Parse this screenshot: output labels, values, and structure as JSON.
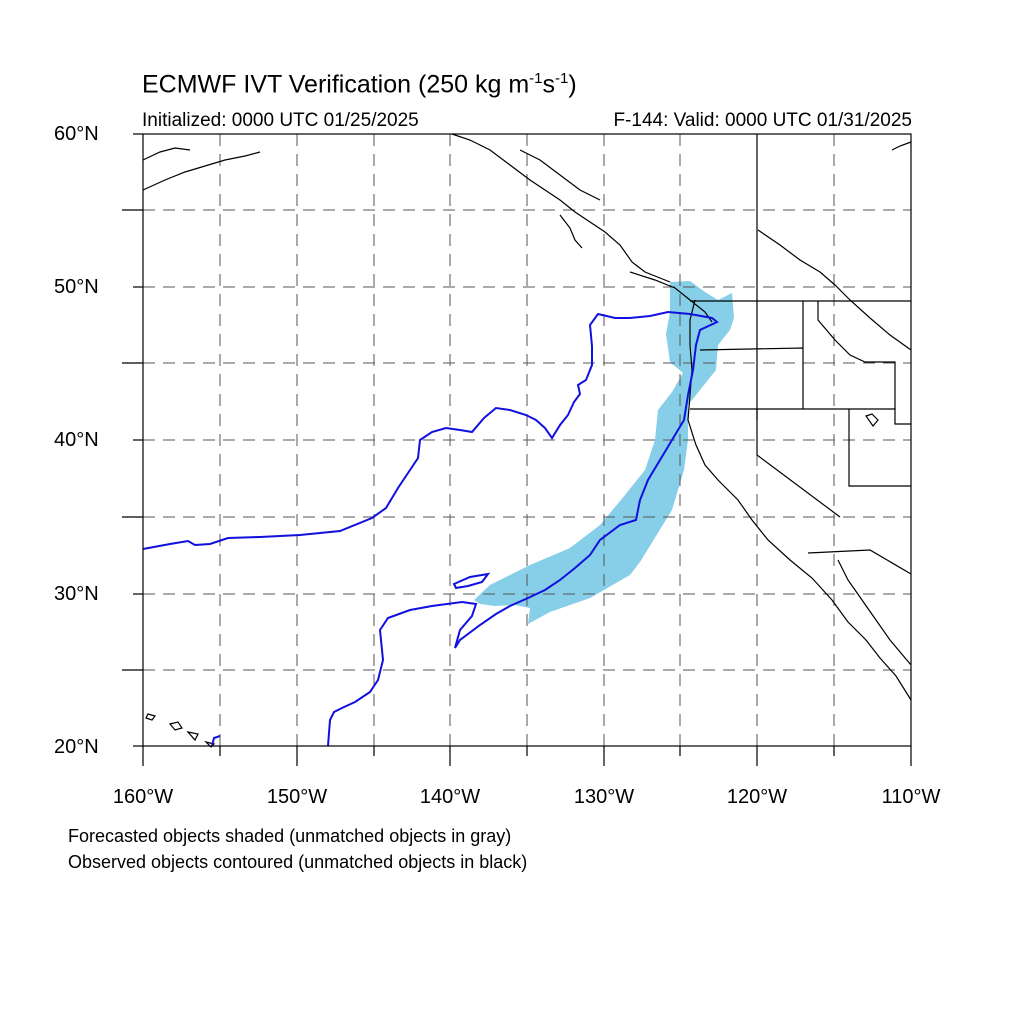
{
  "header": {
    "title_main": "ECMWF IVT Verification (250 kg m",
    "title_sup1": "-1",
    "title_mid": "s",
    "title_sup2": "-1",
    "title_end": ")",
    "initialized": "Initialized: 0000 UTC 01/25/2025",
    "valid": "F-144: Valid: 0000 UTC 01/31/2025"
  },
  "axes": {
    "lat_labels": [
      "60°N",
      "50°N",
      "40°N",
      "30°N",
      "20°N"
    ],
    "lon_labels": [
      "160°W",
      "150°W",
      "140°W",
      "130°W",
      "120°W",
      "110°W"
    ],
    "lat_range": [
      20,
      60
    ],
    "lon_range": [
      -160,
      -110
    ]
  },
  "legend": {
    "line1": "Forecasted objects shaded (unmatched objects in gray)",
    "line2": "Observed objects contoured (unmatched objects in black)"
  },
  "colors": {
    "forecast_fill": "#87CEE8",
    "observed_contour": "#1010E0",
    "coastline": "#000000",
    "grid": "#555555"
  }
}
